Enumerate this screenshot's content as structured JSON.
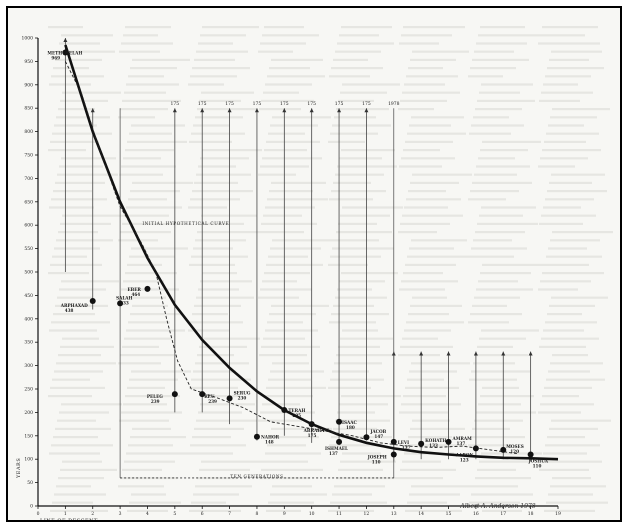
{
  "chart_data": {
    "type": "scatter",
    "ylabel": "YEARS",
    "xlabel": "LINE OF DESCENT",
    "xlim": [
      0,
      19
    ],
    "ylim": [
      0,
      1000
    ],
    "x_ticks": [
      0,
      1,
      2,
      3,
      4,
      5,
      6,
      7,
      8,
      9,
      10,
      11,
      12,
      13,
      14,
      15,
      16,
      17,
      18,
      19
    ],
    "y_ticks": [
      0,
      50,
      100,
      150,
      200,
      250,
      300,
      350,
      400,
      450,
      500,
      550,
      600,
      650,
      700,
      750,
      800,
      850,
      900,
      950,
      1000
    ],
    "points": [
      {
        "label": "METHUSELAH",
        "value": "969",
        "x": 1,
        "y": 969
      },
      {
        "label": "ARPHAXAD",
        "value": "438",
        "x": 2,
        "y": 438
      },
      {
        "label": "SALAH",
        "value": "433",
        "x": 3,
        "y": 433
      },
      {
        "label": "EBER",
        "value": "464",
        "x": 4,
        "y": 464
      },
      {
        "label": "PELEG",
        "value": "239",
        "x": 5,
        "y": 239
      },
      {
        "label": "REU",
        "value": "239",
        "x": 6,
        "y": 239
      },
      {
        "label": "SERUG",
        "value": "230",
        "x": 7,
        "y": 230
      },
      {
        "label": "NAHOR",
        "value": "148",
        "x": 8,
        "y": 148
      },
      {
        "label": "TERAH",
        "value": "205",
        "x": 9,
        "y": 205
      },
      {
        "label": "ABRAHAM",
        "value": "175",
        "x": 10,
        "y": 175
      },
      {
        "label": "ISHMAEL",
        "value": "137",
        "x": 11,
        "y": 137
      },
      {
        "label": "ISAAC",
        "value": "180",
        "x": 11,
        "y": 180
      },
      {
        "label": "JACOB",
        "value": "147",
        "x": 12,
        "y": 147
      },
      {
        "label": "JOSEPH",
        "value": "110",
        "x": 13,
        "y": 110
      },
      {
        "label": "LEVI",
        "value": "137",
        "x": 13,
        "y": 137
      },
      {
        "label": "KOHATH",
        "value": "133",
        "x": 14,
        "y": 133
      },
      {
        "label": "AMRAM",
        "value": "137",
        "x": 15,
        "y": 137
      },
      {
        "label": "AARON",
        "value": "123",
        "x": 16,
        "y": 123
      },
      {
        "label": "MOSES",
        "value": "120",
        "x": 17,
        "y": 120
      },
      {
        "label": "JOSHUA",
        "value": "110",
        "x": 18,
        "y": 110
      }
    ],
    "fit_curve": [
      {
        "x": 1,
        "y": 985
      },
      {
        "x": 2,
        "y": 800
      },
      {
        "x": 3,
        "y": 650
      },
      {
        "x": 4,
        "y": 530
      },
      {
        "x": 5,
        "y": 430
      },
      {
        "x": 6,
        "y": 355
      },
      {
        "x": 7,
        "y": 295
      },
      {
        "x": 8,
        "y": 245
      },
      {
        "x": 9,
        "y": 205
      },
      {
        "x": 10,
        "y": 175
      },
      {
        "x": 11,
        "y": 152
      },
      {
        "x": 12,
        "y": 135
      },
      {
        "x": 13,
        "y": 123
      },
      {
        "x": 14,
        "y": 115
      },
      {
        "x": 15,
        "y": 110
      },
      {
        "x": 16,
        "y": 106
      },
      {
        "x": 17,
        "y": 103
      },
      {
        "x": 18,
        "y": 102
      },
      {
        "x": 19,
        "y": 100
      }
    ],
    "dashed_curve": [
      {
        "x": 1,
        "y": 950
      },
      {
        "x": 1.6,
        "y": 880
      },
      {
        "x": 2.2,
        "y": 770
      },
      {
        "x": 3,
        "y": 640
      },
      {
        "x": 3.8,
        "y": 560
      },
      {
        "x": 4.3,
        "y": 500
      },
      {
        "x": 4.7,
        "y": 400
      },
      {
        "x": 5.1,
        "y": 310
      },
      {
        "x": 5.6,
        "y": 250
      },
      {
        "x": 6.5,
        "y": 232
      },
      {
        "x": 7.5,
        "y": 210
      },
      {
        "x": 8.5,
        "y": 180
      },
      {
        "x": 9.5,
        "y": 170
      },
      {
        "x": 10.5,
        "y": 160
      },
      {
        "x": 11.5,
        "y": 150
      },
      {
        "x": 12.5,
        "y": 135
      },
      {
        "x": 13.5,
        "y": 128
      },
      {
        "x": 14.5,
        "y": 125
      },
      {
        "x": 15.5,
        "y": 128
      },
      {
        "x": 16.5,
        "y": 120
      },
      {
        "x": 17.5,
        "y": 112
      }
    ],
    "drop_lines": [
      {
        "x": 1,
        "y1": 500,
        "y2": 1000
      },
      {
        "x": 2,
        "y1": 420,
        "y2": 850
      },
      {
        "x": 5,
        "y1": 200,
        "y2": 850
      },
      {
        "x": 6,
        "y1": 200,
        "y2": 850
      },
      {
        "x": 7,
        "y1": 175,
        "y2": 850
      },
      {
        "x": 8,
        "y1": 140,
        "y2": 850
      },
      {
        "x": 9,
        "y1": 150,
        "y2": 850
      },
      {
        "x": 10,
        "y1": 135,
        "y2": 850
      },
      {
        "x": 11,
        "y1": 130,
        "y2": 850
      },
      {
        "x": 12,
        "y1": 140,
        "y2": 850
      },
      {
        "x": 13,
        "y1": 95,
        "y2": 330
      },
      {
        "x": 14,
        "y1": 100,
        "y2": 330
      },
      {
        "x": 15,
        "y1": 100,
        "y2": 330
      },
      {
        "x": 16,
        "y1": 100,
        "y2": 330
      },
      {
        "x": 17,
        "y1": 100,
        "y2": 330
      },
      {
        "x": 18,
        "y1": 95,
        "y2": 330
      }
    ],
    "column_labels": [
      {
        "x": 5,
        "label": "175"
      },
      {
        "x": 6,
        "label": "175"
      },
      {
        "x": 7,
        "label": "175"
      },
      {
        "x": 8,
        "label": "175"
      },
      {
        "x": 9,
        "label": "175"
      },
      {
        "x": 10,
        "label": "175"
      },
      {
        "x": 11,
        "label": "175"
      },
      {
        "x": 12,
        "label": "175"
      },
      {
        "x": 13,
        "label": "1978"
      }
    ],
    "annotations": [
      {
        "text": "INITIAL HYPOTHETICAL CURVE",
        "x": 5.4,
        "y": 600
      },
      {
        "text": "TEN GENERATIONS",
        "x": 8.0,
        "y": 60
      }
    ],
    "bracket": {
      "x1": 3,
      "x2": 13,
      "y": 60
    },
    "signature": "Albert A. Anderson 1978"
  }
}
